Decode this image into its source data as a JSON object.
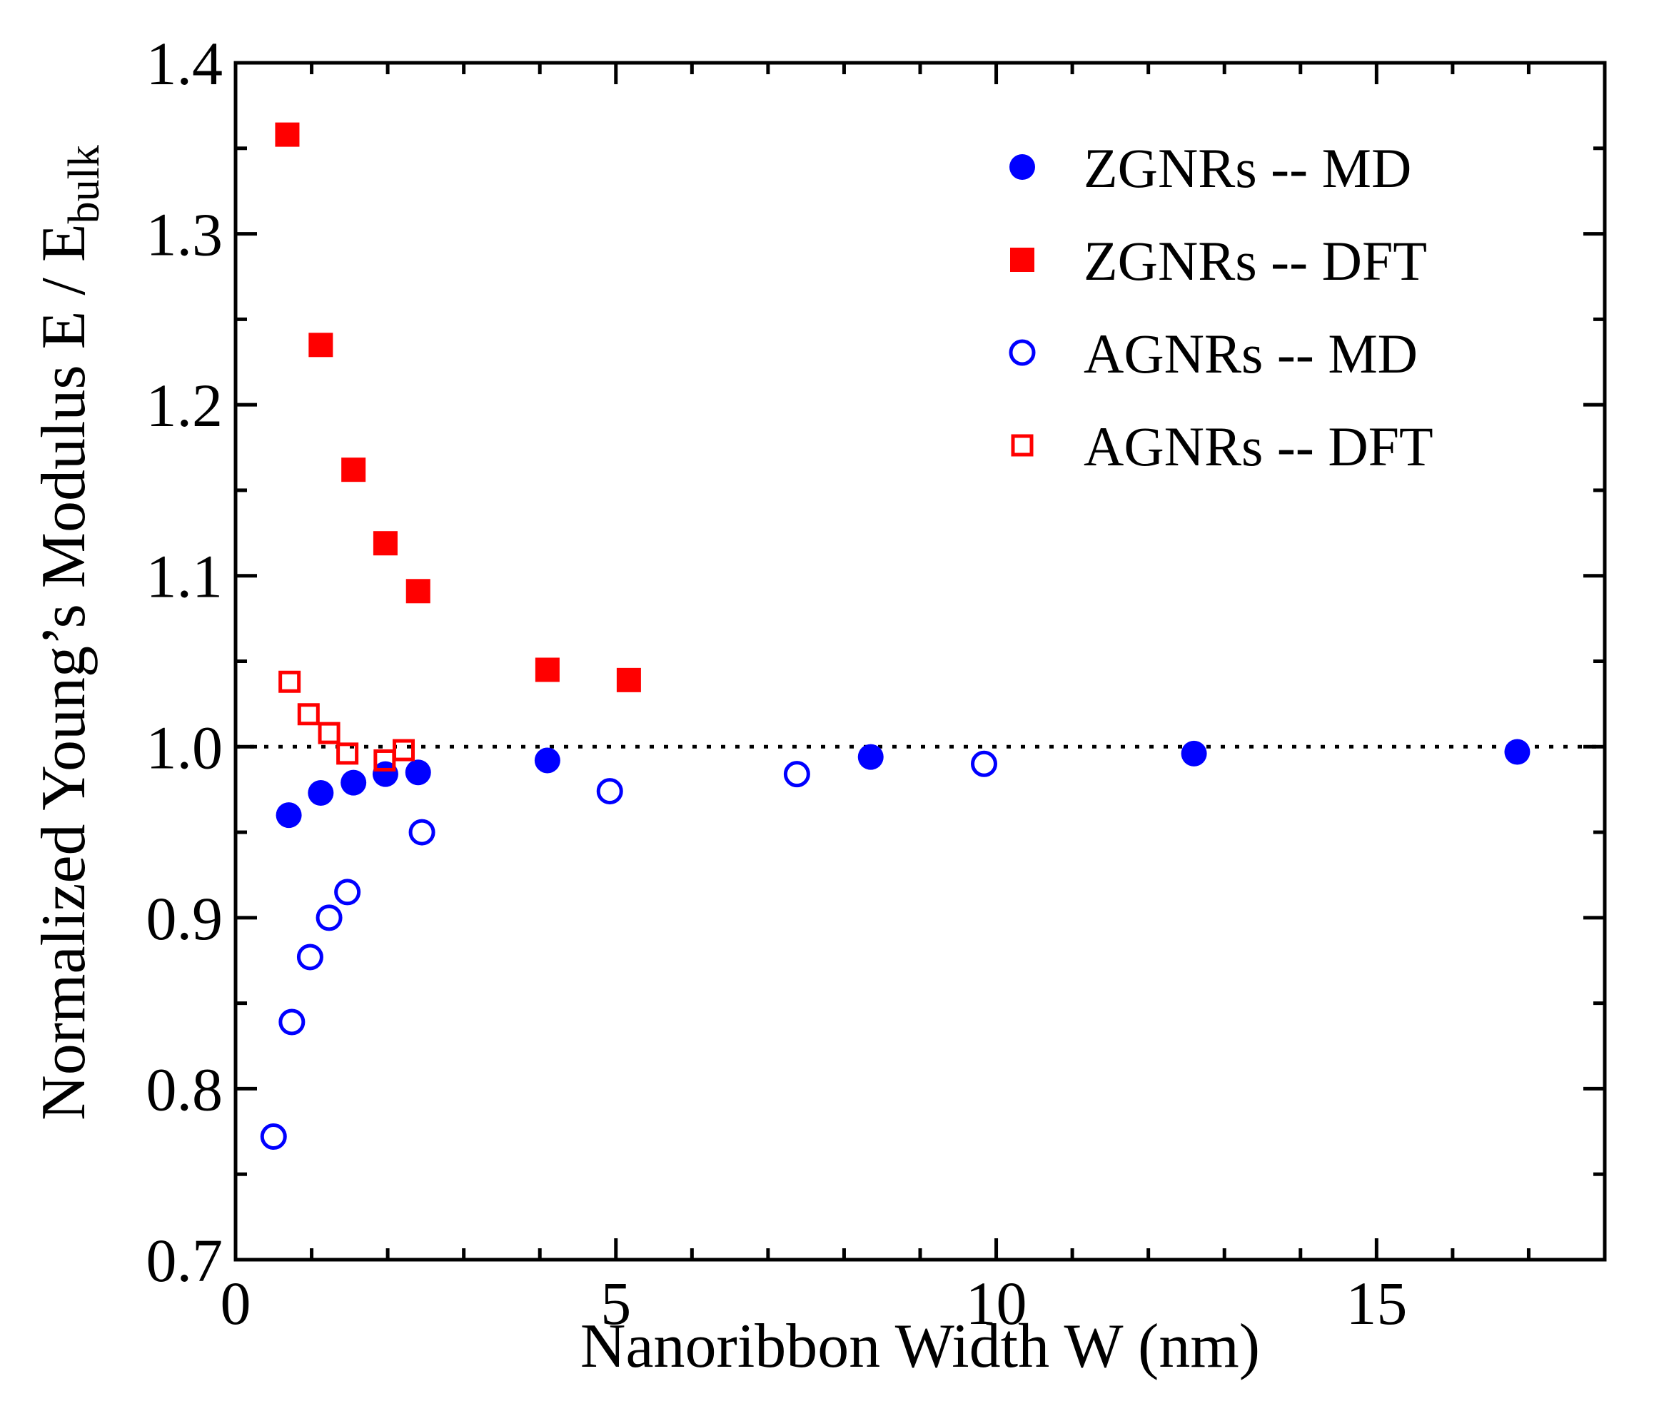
{
  "chart_data": {
    "type": "scatter",
    "title": "",
    "xlabel": "Nanoribbon Width  W (nm)",
    "ylabel_main": "Normalized Young’s Modulus  E / E",
    "ylabel_sub": "bulk",
    "xlim": [
      0,
      18
    ],
    "ylim": [
      0.7,
      1.4
    ],
    "x_ticks": [
      0,
      5,
      10,
      15
    ],
    "x_tick_labels": [
      "0",
      "5",
      "10",
      "15"
    ],
    "y_ticks": [
      0.7,
      0.8,
      0.9,
      1.0,
      1.1,
      1.2,
      1.3,
      1.4
    ],
    "y_tick_labels": [
      "0.7",
      "0.8",
      "0.9",
      "1.0",
      "1.1",
      "1.2",
      "1.3",
      "1.4"
    ],
    "reference_line": {
      "y": 1.0,
      "style": "dotted"
    },
    "legend_position": "top-right",
    "series": [
      {
        "name": "ZGNRs -- MD",
        "marker": "filled-circle",
        "color": "#0000ff",
        "x": [
          0.7,
          1.12,
          1.55,
          1.97,
          2.4,
          4.1,
          8.35,
          12.6,
          16.85
        ],
        "y": [
          0.96,
          0.973,
          0.979,
          0.984,
          0.985,
          0.992,
          0.994,
          0.996,
          0.997
        ]
      },
      {
        "name": "ZGNRs -- DFT",
        "marker": "filled-square",
        "color": "#ff0000",
        "x": [
          0.68,
          1.12,
          1.55,
          1.97,
          2.4,
          4.1,
          5.17
        ],
        "y": [
          1.358,
          1.235,
          1.162,
          1.119,
          1.091,
          1.045,
          1.039
        ]
      },
      {
        "name": "AGNRs -- MD",
        "marker": "open-circle",
        "color": "#0000ff",
        "x": [
          0.5,
          0.74,
          0.98,
          1.23,
          1.47,
          2.45,
          4.92,
          7.38,
          9.84
        ],
        "y": [
          0.772,
          0.839,
          0.877,
          0.9,
          0.915,
          0.95,
          0.974,
          0.984,
          0.99
        ]
      },
      {
        "name": "AGNRs -- DFT",
        "marker": "open-square",
        "color": "#ff0000",
        "x": [
          0.71,
          0.96,
          1.23,
          1.47,
          1.96,
          2.21
        ],
        "y": [
          1.038,
          1.019,
          1.008,
          0.996,
          0.992,
          0.998
        ]
      }
    ]
  }
}
